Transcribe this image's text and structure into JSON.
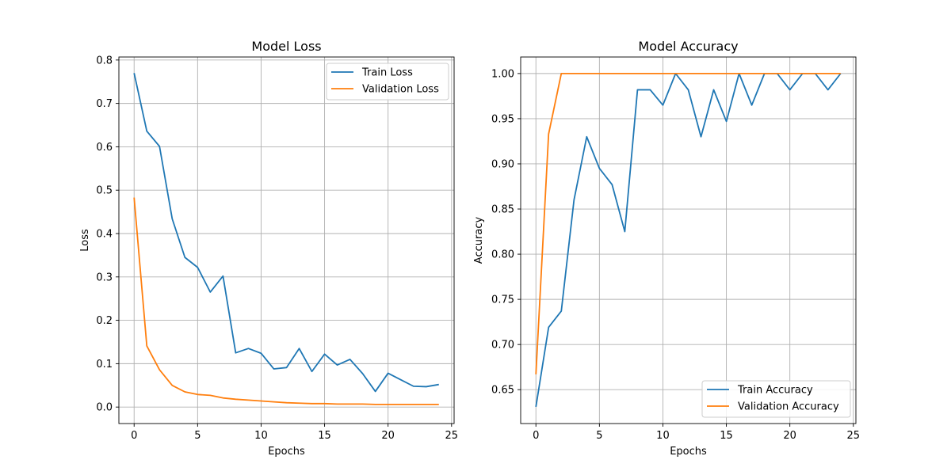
{
  "colors": {
    "train": "#1f77b4",
    "validation": "#ff7f0e",
    "grid": "#b0b0b0",
    "axis": "#000000"
  },
  "chart_data": [
    {
      "type": "line",
      "title": "Model Loss",
      "xlabel": "Epochs",
      "ylabel": "Loss",
      "xlim": [
        -1.2,
        25.2
      ],
      "ylim": [
        -0.038,
        0.807
      ],
      "xticks": [
        0,
        5,
        10,
        15,
        20,
        25
      ],
      "yticks": [
        0.0,
        0.1,
        0.2,
        0.3,
        0.4,
        0.5,
        0.6,
        0.7,
        0.8
      ],
      "ytick_labels": [
        "0.0",
        "0.1",
        "0.2",
        "0.3",
        "0.4",
        "0.5",
        "0.6",
        "0.7",
        "0.8"
      ],
      "grid": true,
      "legend_position": "top-right",
      "x": [
        0,
        1,
        2,
        3,
        4,
        5,
        6,
        7,
        8,
        9,
        10,
        11,
        12,
        13,
        14,
        15,
        16,
        17,
        18,
        19,
        20,
        21,
        22,
        23,
        24
      ],
      "series": [
        {
          "name": "Train Loss",
          "color": "#1f77b4",
          "values": [
            0.77,
            0.636,
            0.601,
            0.434,
            0.345,
            0.322,
            0.265,
            0.302,
            0.125,
            0.135,
            0.124,
            0.088,
            0.091,
            0.135,
            0.082,
            0.122,
            0.097,
            0.11,
            0.077,
            0.036,
            0.078,
            0.063,
            0.048,
            0.047,
            0.052
          ]
        },
        {
          "name": "Validation Loss",
          "color": "#ff7f0e",
          "values": [
            0.483,
            0.141,
            0.086,
            0.05,
            0.035,
            0.029,
            0.027,
            0.021,
            0.018,
            0.016,
            0.014,
            0.012,
            0.01,
            0.009,
            0.008,
            0.008,
            0.007,
            0.007,
            0.007,
            0.006,
            0.006,
            0.006,
            0.006,
            0.006,
            0.006
          ]
        }
      ]
    },
    {
      "type": "line",
      "title": "Model Accuracy",
      "xlabel": "Epochs",
      "ylabel": "Accuracy",
      "xlim": [
        -1.2,
        25.2
      ],
      "ylim": [
        0.6125,
        1.0183
      ],
      "xticks": [
        0,
        5,
        10,
        15,
        20,
        25
      ],
      "yticks": [
        0.65,
        0.7,
        0.75,
        0.8,
        0.85,
        0.9,
        0.95,
        1.0
      ],
      "ytick_labels": [
        "0.65",
        "0.70",
        "0.75",
        "0.80",
        "0.85",
        "0.90",
        "0.95",
        "1.00"
      ],
      "grid": true,
      "legend_position": "lower-right",
      "x": [
        0,
        1,
        2,
        3,
        4,
        5,
        6,
        7,
        8,
        9,
        10,
        11,
        12,
        13,
        14,
        15,
        16,
        17,
        18,
        19,
        20,
        21,
        22,
        23,
        24
      ],
      "series": [
        {
          "name": "Train Accuracy",
          "color": "#1f77b4",
          "values": [
            0.631,
            0.719,
            0.737,
            0.86,
            0.93,
            0.895,
            0.877,
            0.825,
            0.982,
            0.982,
            0.965,
            1.0,
            0.982,
            0.93,
            0.982,
            0.947,
            1.0,
            0.965,
            1.0,
            1.0,
            0.982,
            1.0,
            1.0,
            0.982,
            1.0
          ]
        },
        {
          "name": "Validation Accuracy",
          "color": "#ff7f0e",
          "values": [
            0.667,
            0.933,
            1.0,
            1.0,
            1.0,
            1.0,
            1.0,
            1.0,
            1.0,
            1.0,
            1.0,
            1.0,
            1.0,
            1.0,
            1.0,
            1.0,
            1.0,
            1.0,
            1.0,
            1.0,
            1.0,
            1.0,
            1.0,
            1.0,
            1.0
          ]
        }
      ]
    }
  ]
}
